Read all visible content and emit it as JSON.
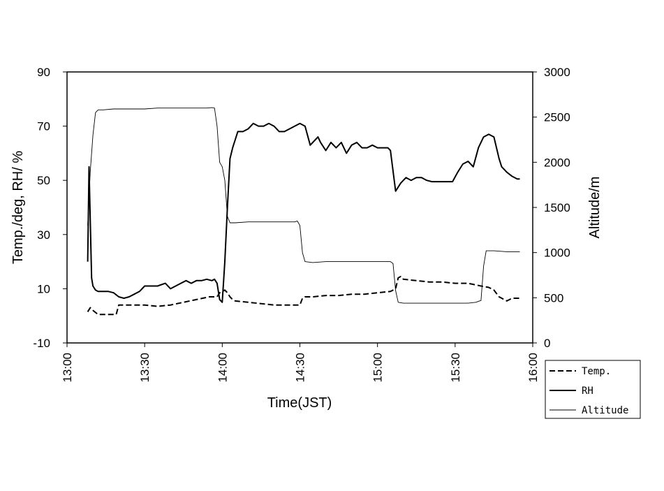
{
  "chart_data": {
    "type": "line",
    "title": "",
    "xlabel": "Time(JST)",
    "ylabel_left": "Temp./deg, RH/ %",
    "ylabel_right": "Altitude/m",
    "xlim_minutes": [
      0,
      180
    ],
    "x_ticks": [
      {
        "min": 0,
        "label": "13:00"
      },
      {
        "min": 30,
        "label": "13:30"
      },
      {
        "min": 60,
        "label": "14:00"
      },
      {
        "min": 90,
        "label": "14:30"
      },
      {
        "min": 120,
        "label": "15:00"
      },
      {
        "min": 150,
        "label": "15:30"
      },
      {
        "min": 180,
        "label": "16:00"
      }
    ],
    "ylim_left": [
      -10,
      90
    ],
    "y_ticks_left": [
      -10,
      10,
      30,
      50,
      70,
      90
    ],
    "ylim_right": [
      0,
      3000
    ],
    "y_ticks_right": [
      0,
      500,
      1000,
      1500,
      2000,
      2500,
      3000
    ],
    "legend_position": "right-below",
    "series": [
      {
        "name": "Temp.",
        "axis": "left",
        "style": "dashed",
        "x": [
          8,
          9,
          10,
          12,
          15,
          18,
          19,
          20,
          22,
          25,
          30,
          35,
          40,
          45,
          50,
          55,
          58,
          59,
          60,
          61,
          62,
          63,
          64,
          65,
          70,
          75,
          80,
          85,
          90,
          91,
          92,
          95,
          100,
          105,
          110,
          115,
          120,
          125,
          127,
          128,
          129,
          130,
          135,
          140,
          145,
          150,
          155,
          160,
          163,
          165,
          167,
          170,
          172,
          175
        ],
        "values": [
          1.5,
          3,
          2,
          0.5,
          0.5,
          0.5,
          0.5,
          4,
          4,
          4,
          4,
          3.5,
          4,
          5,
          6,
          7,
          7,
          8.5,
          9,
          9.5,
          8.5,
          7,
          6,
          5.5,
          5,
          4.5,
          4,
          4,
          4,
          6.5,
          7,
          7,
          7.5,
          7.5,
          8,
          8,
          8.5,
          9,
          10,
          14,
          14.5,
          13.5,
          13,
          12.5,
          12.5,
          12,
          12,
          11,
          10.5,
          9.5,
          7,
          5.5,
          6.5,
          6.5
        ]
      },
      {
        "name": "RH",
        "axis": "left",
        "style": "solid-thick",
        "x": [
          8,
          8.5,
          9,
          9.5,
          10,
          11,
          12,
          14,
          16,
          18,
          20,
          22,
          24,
          26,
          28,
          30,
          32,
          35,
          38,
          40,
          42,
          44,
          46,
          48,
          50,
          52,
          54,
          56,
          57,
          58,
          59,
          60,
          61,
          62,
          63,
          64,
          65,
          66,
          68,
          70,
          72,
          74,
          76,
          78,
          80,
          82,
          84,
          86,
          88,
          90,
          92,
          94,
          96,
          97,
          98,
          100,
          102,
          104,
          106,
          108,
          110,
          112,
          114,
          116,
          118,
          120,
          122,
          124,
          125,
          127,
          129,
          131,
          133,
          135,
          137,
          139,
          141,
          143,
          145,
          147,
          149,
          151,
          153,
          155,
          157,
          159,
          161,
          163,
          165,
          166,
          167,
          168,
          169,
          170,
          172,
          174,
          175
        ],
        "values": [
          20,
          55,
          35,
          14,
          11,
          9.5,
          9,
          9,
          9,
          8.5,
          7,
          6.5,
          7,
          8,
          9,
          11,
          11,
          11,
          12,
          10,
          11,
          12,
          13,
          12,
          13,
          13,
          13.5,
          13,
          13.5,
          12,
          6,
          5,
          20,
          40,
          58,
          62,
          65,
          68,
          68,
          69,
          71,
          70,
          70,
          71,
          70,
          68,
          68,
          69,
          70,
          71,
          70,
          63,
          65,
          66,
          64,
          61,
          64,
          62,
          64,
          60,
          63,
          64,
          62,
          62,
          63,
          62,
          62,
          62,
          61,
          46,
          49,
          51,
          50,
          51,
          51,
          50,
          49.5,
          49.5,
          49.5,
          49.5,
          49.5,
          53,
          56,
          57,
          55,
          62,
          66,
          67,
          66,
          62,
          58,
          55,
          54,
          53,
          51.5,
          50.5,
          50.5
        ]
      },
      {
        "name": "Altitude",
        "axis": "right",
        "style": "solid-thin",
        "x": [
          8,
          9,
          10,
          11,
          12,
          14,
          18,
          22,
          26,
          30,
          35,
          40,
          45,
          50,
          54,
          56,
          57,
          58,
          59,
          60,
          61,
          62,
          63,
          65,
          70,
          75,
          80,
          85,
          88,
          89,
          90,
          91,
          92,
          95,
          100,
          105,
          110,
          115,
          120,
          125,
          126,
          127,
          128,
          130,
          135,
          140,
          145,
          150,
          155,
          158,
          160,
          161,
          162,
          165,
          170,
          175
        ],
        "values": [
          1300,
          1900,
          2300,
          2550,
          2580,
          2580,
          2590,
          2590,
          2590,
          2590,
          2600,
          2600,
          2600,
          2600,
          2600,
          2605,
          2600,
          2400,
          2000,
          1950,
          1800,
          1400,
          1330,
          1330,
          1340,
          1340,
          1340,
          1340,
          1340,
          1350,
          1300,
          1000,
          900,
          890,
          900,
          900,
          900,
          900,
          900,
          900,
          880,
          580,
          450,
          440,
          440,
          440,
          440,
          440,
          440,
          450,
          470,
          850,
          1020,
          1020,
          1010,
          1010
        ]
      }
    ]
  }
}
